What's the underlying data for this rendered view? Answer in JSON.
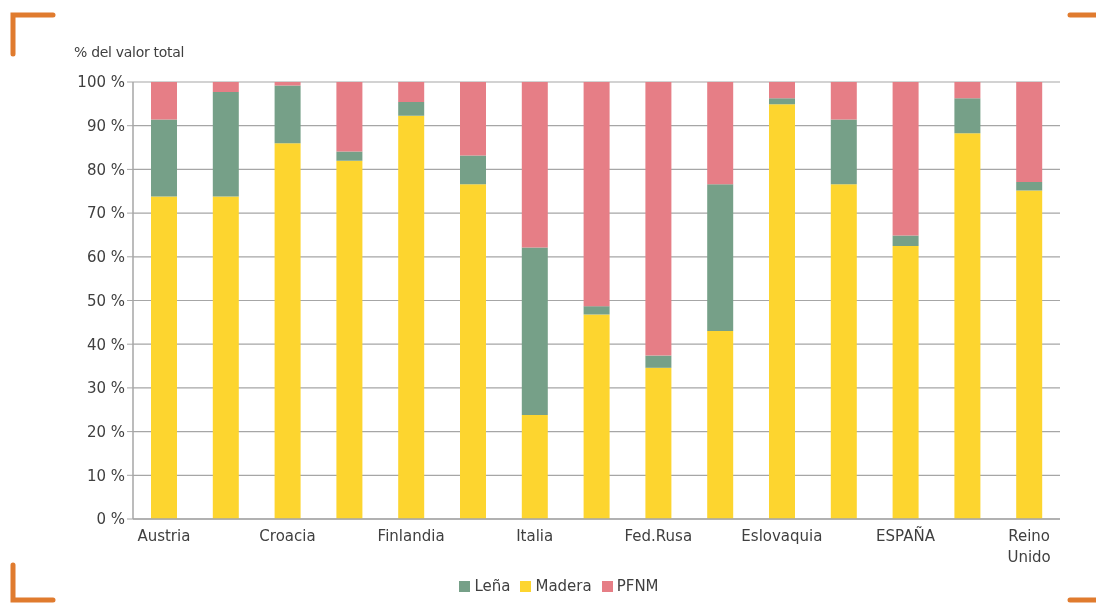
{
  "chart_data": {
    "type": "bar",
    "stacked": true,
    "ylabel": "% del valor total",
    "categories": [
      "Austria",
      null,
      "Croacia",
      null,
      "Finlandia",
      null,
      "Italia",
      null,
      "Fed.Rusa",
      null,
      "Eslovaquia",
      null,
      "ESPAÑA",
      null,
      "Reino Unido"
    ],
    "series": [
      {
        "name": "Madera",
        "color": "#fdd52f",
        "values": [
          73.8,
          73.8,
          86.0,
          82.0,
          92.3,
          76.6,
          23.8,
          46.8,
          34.6,
          43.0,
          94.9,
          76.6,
          62.5,
          88.3,
          75.2
        ]
      },
      {
        "name": "Leña",
        "color": "#76a088",
        "values": [
          17.6,
          23.9,
          13.2,
          2.1,
          3.1,
          6.6,
          38.3,
          1.9,
          2.8,
          33.6,
          1.4,
          14.8,
          2.4,
          8.0,
          1.9
        ]
      },
      {
        "name": "PFNM",
        "color": "#e67e86",
        "values": [
          8.6,
          2.3,
          0.8,
          15.9,
          4.6,
          16.8,
          37.9,
          51.3,
          62.6,
          23.4,
          3.7,
          8.6,
          35.1,
          3.7,
          22.9
        ]
      }
    ],
    "ylim": [
      0,
      100
    ],
    "yticks": [
      {
        "value": 0,
        "label": "0 %"
      },
      {
        "value": 10,
        "label": "10 %"
      },
      {
        "value": 20,
        "label": "20 %"
      },
      {
        "value": 30,
        "label": "30 %"
      },
      {
        "value": 40,
        "label": "40 %"
      },
      {
        "value": 50,
        "label": "50 %"
      },
      {
        "value": 60,
        "label": "60 %"
      },
      {
        "value": 70,
        "label": "70 %"
      },
      {
        "value": 80,
        "label": "80 %"
      },
      {
        "value": 90,
        "label": "90 %"
      },
      {
        "value": 100,
        "label": "100 %"
      }
    ],
    "grid": "y",
    "legend": "bottom"
  }
}
